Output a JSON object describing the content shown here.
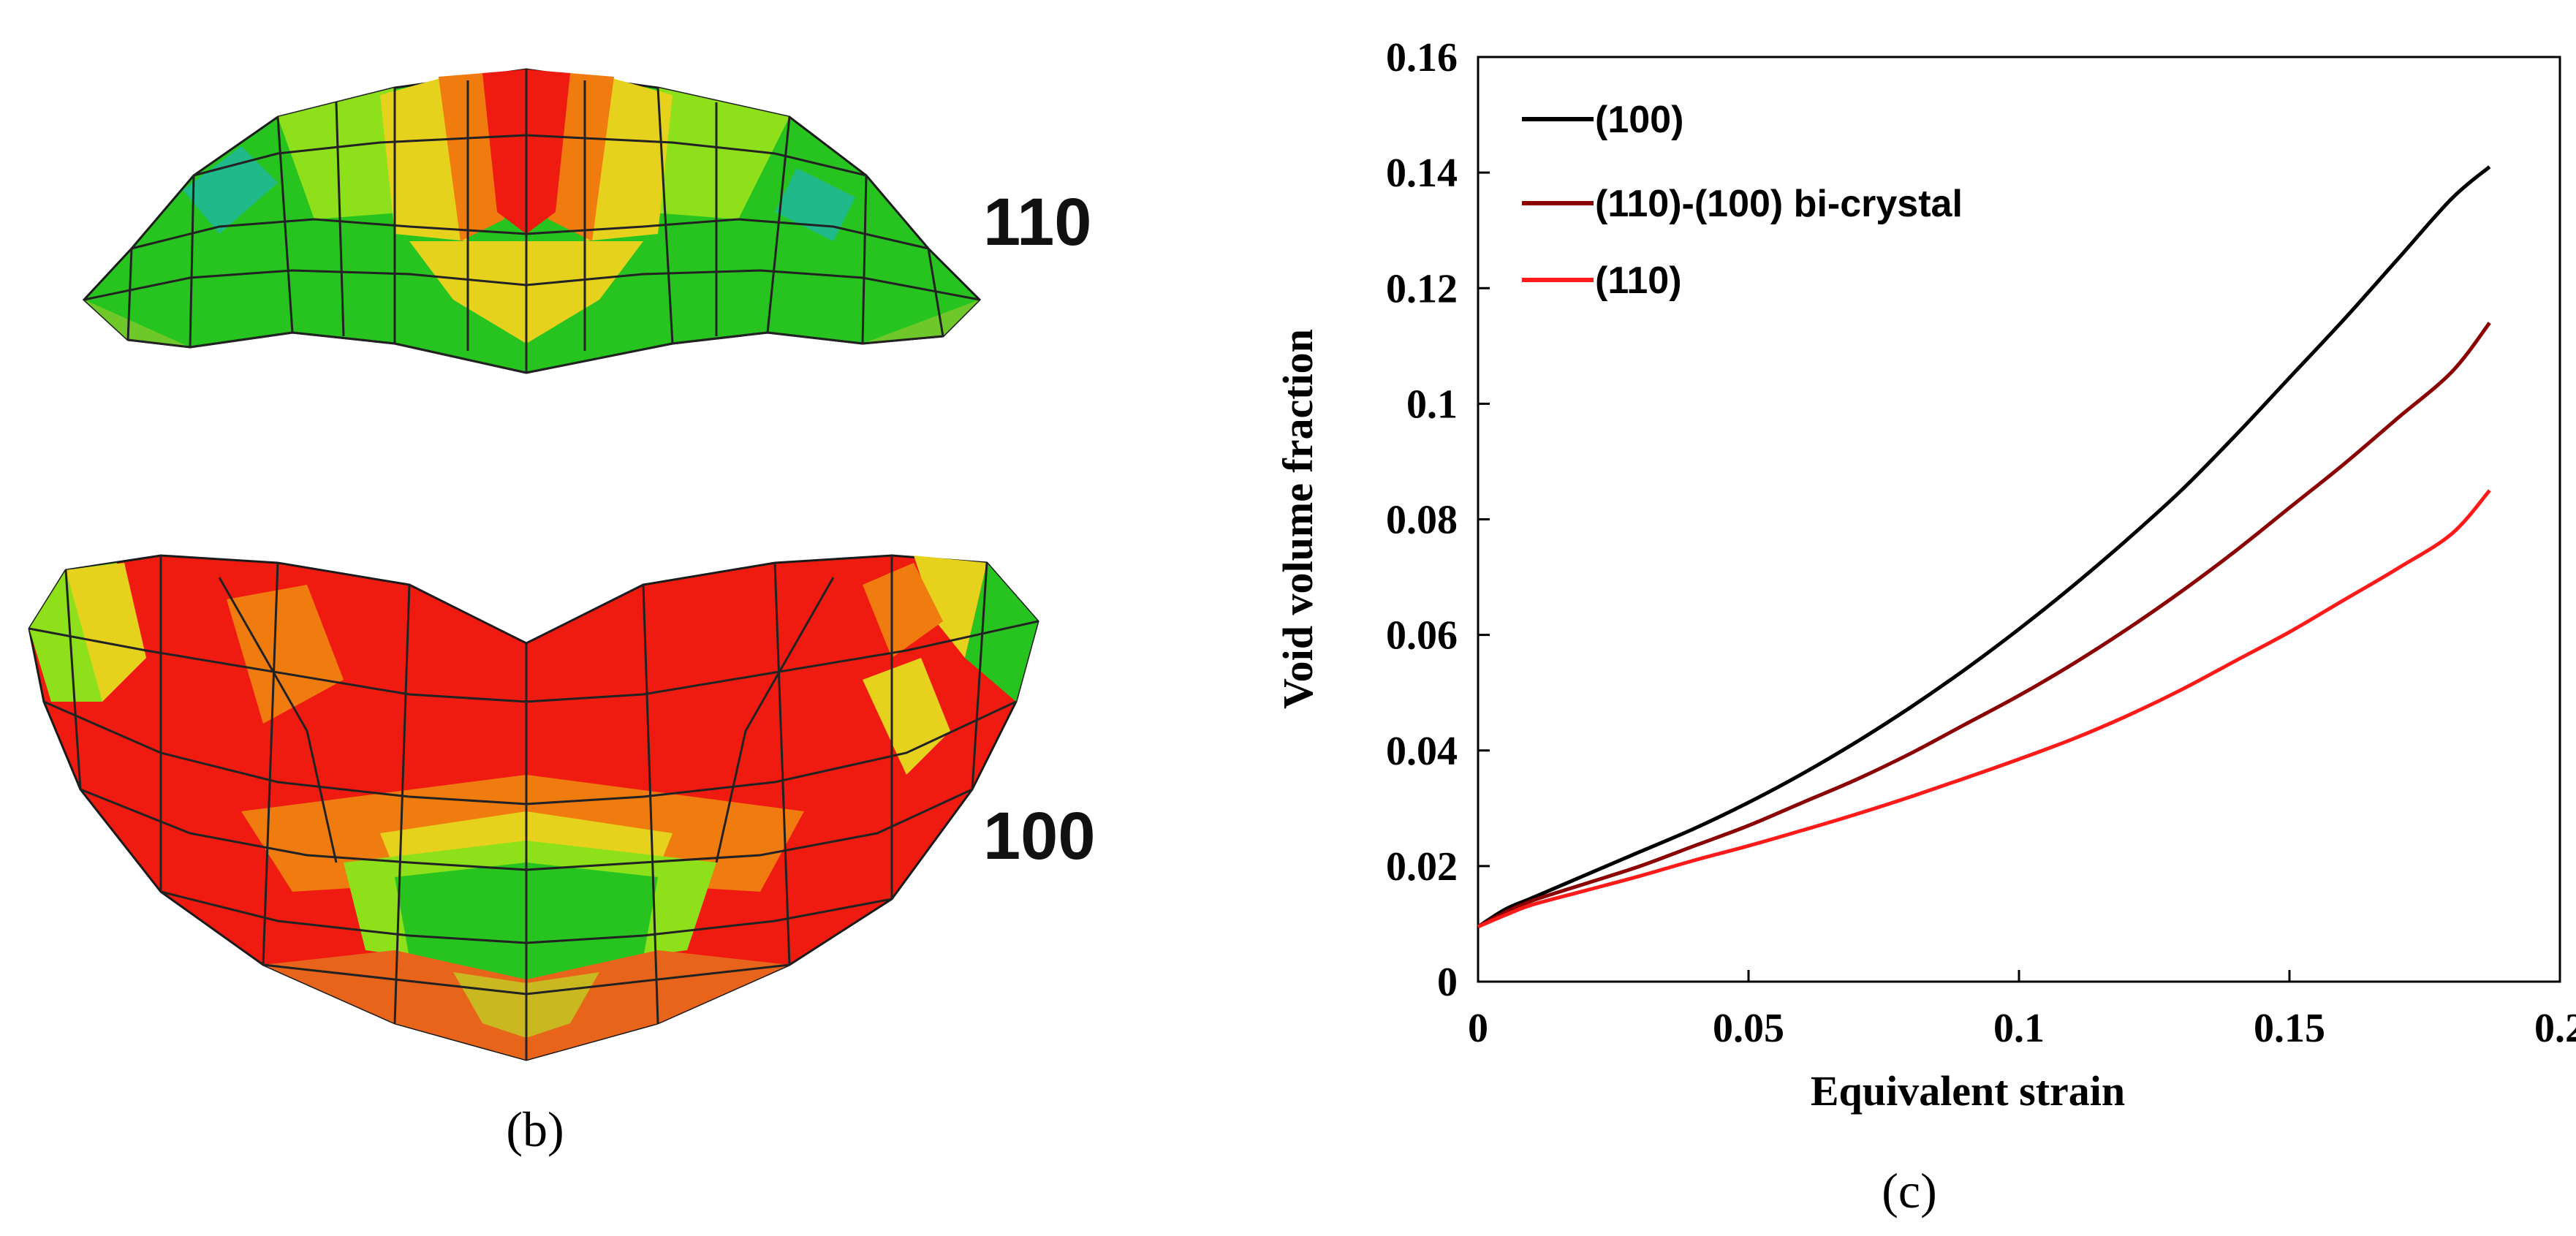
{
  "panel_b": {
    "label": "(b)",
    "meshes": [
      {
        "label": "110"
      },
      {
        "label": "100"
      }
    ]
  },
  "panel_c": {
    "label": "(c)"
  },
  "colors": {
    "series_100": "#000000",
    "series_bicrystal": "#8b0000",
    "series_110": "#ff1a1a",
    "mesh_red": "#ef1a10",
    "mesh_orange": "#f07c10",
    "mesh_yellow": "#e6d21c",
    "mesh_lime": "#8ee01a",
    "mesh_green": "#27c41f",
    "mesh_teal": "#1fb98a"
  },
  "chart_data": {
    "type": "line",
    "title": "",
    "xlabel": "Equivalent strain",
    "ylabel": "Void volume fraction",
    "xlim": [
      0,
      0.2
    ],
    "ylim": [
      0,
      0.16
    ],
    "xticks": [
      "0",
      "0.05",
      "0.1",
      "0.15",
      "0.2"
    ],
    "yticks": [
      "0",
      "0.02",
      "0.04",
      "0.06",
      "0.08",
      "0.1",
      "0.12",
      "0.14",
      "0.16"
    ],
    "grid": false,
    "legend_position": "top-left",
    "x": [
      0,
      0.005,
      0.01,
      0.02,
      0.03,
      0.04,
      0.05,
      0.06,
      0.07,
      0.08,
      0.09,
      0.1,
      0.11,
      0.12,
      0.13,
      0.14,
      0.15,
      0.16,
      0.17,
      0.18,
      0.187
    ],
    "series": [
      {
        "name": "(100)",
        "color": "#000000",
        "values": [
          0.0095,
          0.0125,
          0.0145,
          0.0185,
          0.0225,
          0.0265,
          0.031,
          0.036,
          0.0415,
          0.0475,
          0.054,
          0.061,
          0.0685,
          0.0765,
          0.085,
          0.0945,
          0.1045,
          0.1145,
          0.125,
          0.1355,
          0.141
        ]
      },
      {
        "name": "(110)-(100) bi-crystal",
        "color": "#8b0000",
        "values": [
          0.0095,
          0.012,
          0.014,
          0.017,
          0.02,
          0.0235,
          0.027,
          0.031,
          0.035,
          0.0395,
          0.0445,
          0.0495,
          0.055,
          0.061,
          0.0675,
          0.0745,
          0.082,
          0.0895,
          0.0975,
          0.1055,
          0.114
        ]
      },
      {
        "name": "(110)",
        "color": "#ff1a1a",
        "values": [
          0.0095,
          0.0115,
          0.0133,
          0.0158,
          0.0183,
          0.021,
          0.0235,
          0.0262,
          0.029,
          0.032,
          0.0352,
          0.0385,
          0.042,
          0.046,
          0.0505,
          0.0555,
          0.0605,
          0.066,
          0.0715,
          0.0775,
          0.085
        ]
      }
    ]
  }
}
